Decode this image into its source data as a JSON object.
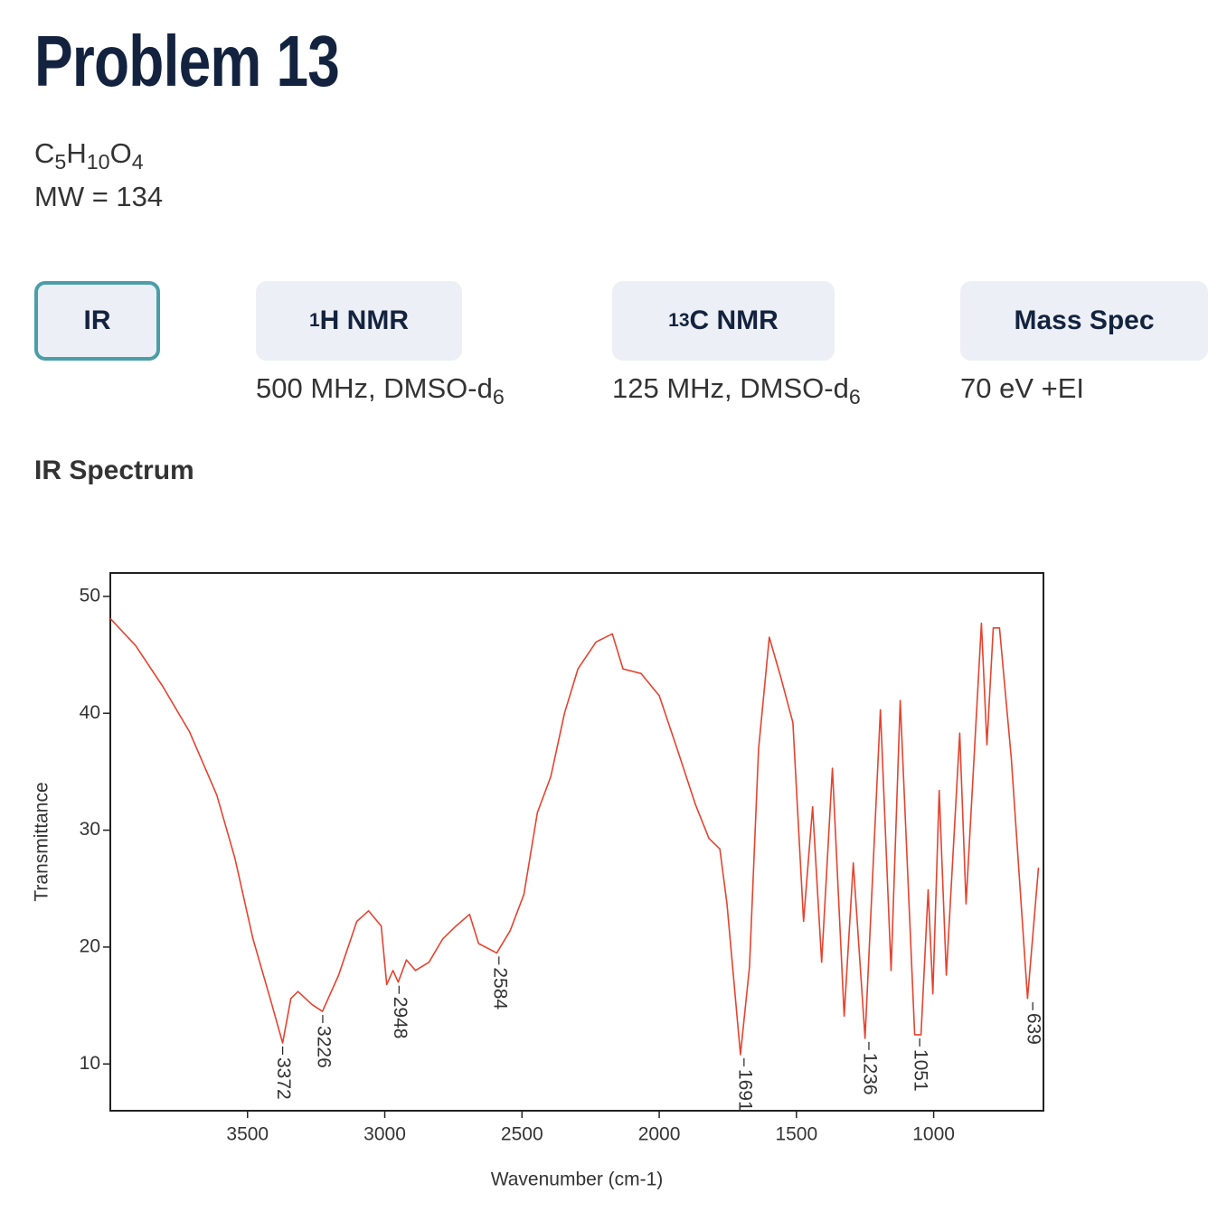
{
  "header": {
    "title": "Problem 13",
    "formula": [
      "C",
      "5",
      "H",
      "10",
      "O",
      "4"
    ],
    "mw": "MW = 134"
  },
  "tabs": {
    "selected": 0,
    "items": [
      {
        "label": "IR"
      },
      {
        "sup": "1",
        "label": "H NMR",
        "note": "500 MHz, DMSO-d",
        "note_sub": "6"
      },
      {
        "sup": "13",
        "label": "C NMR",
        "note": "125 MHz, DMSO-d",
        "note_sub": "6"
      },
      {
        "label": "Mass Spec",
        "note": "70 eV +EI"
      }
    ]
  },
  "section_title": "IR Spectrum",
  "chart_data": {
    "type": "line",
    "xlabel": "Wavenumber (cm-1)",
    "ylabel": "Transmittance",
    "xlim": [
      4000,
      600
    ],
    "ylim": [
      6,
      52
    ],
    "xticks": [
      3500,
      3000,
      2500,
      2000,
      1500,
      1000
    ],
    "yticks": [
      10,
      20,
      30,
      40,
      50
    ],
    "x": [
      4000,
      3908,
      3809,
      3711,
      3612,
      3546,
      3480,
      3414,
      3372,
      3342,
      3316,
      3266,
      3227,
      3168,
      3102,
      3059,
      3013,
      2993,
      2970,
      2951,
      2921,
      2888,
      2839,
      2789,
      2740,
      2691,
      2658,
      2592,
      2543,
      2493,
      2444,
      2395,
      2345,
      2296,
      2230,
      2171,
      2132,
      2066,
      2000,
      1934,
      1868,
      1819,
      1779,
      1753,
      1704,
      1671,
      1638,
      1599,
      1556,
      1513,
      1474,
      1441,
      1408,
      1369,
      1326,
      1293,
      1250,
      1194,
      1155,
      1122,
      1069,
      1046,
      1020,
      1003,
      980,
      954,
      905,
      882,
      826,
      806,
      783,
      760,
      717,
      658,
      618
    ],
    "series": [
      {
        "color": "#e5432f",
        "values": [
          48.1,
          45.8,
          42.3,
          38.4,
          33.0,
          27.6,
          20.7,
          15.3,
          11.8,
          15.6,
          16.2,
          15.1,
          14.5,
          17.6,
          22.2,
          23.1,
          21.8,
          16.8,
          18.0,
          17.0,
          18.9,
          18.0,
          18.7,
          20.7,
          21.8,
          22.8,
          20.3,
          19.5,
          21.4,
          24.5,
          31.5,
          34.6,
          40.0,
          43.8,
          46.1,
          46.8,
          43.8,
          43.4,
          41.5,
          36.9,
          32.2,
          29.3,
          28.4,
          23.7,
          10.8,
          18.3,
          36.9,
          46.5,
          43.0,
          39.2,
          22.2,
          32.0,
          18.7,
          35.3,
          14.1,
          27.2,
          12.2,
          40.3,
          18.0,
          41.1,
          12.5,
          12.5,
          24.9,
          16.0,
          33.4,
          17.6,
          38.3,
          23.7,
          47.7,
          37.3,
          47.3,
          47.3,
          36.1,
          15.6,
          26.8
        ]
      }
    ],
    "peaks": [
      {
        "x": 3372,
        "y": 11.8
      },
      {
        "x": 3226,
        "y": 14.5
      },
      {
        "x": 2948,
        "y": 17.0
      },
      {
        "x": 2584,
        "y": 19.5
      },
      {
        "x": 1691,
        "y": 10.8
      },
      {
        "x": 1236,
        "y": 12.2
      },
      {
        "x": 1051,
        "y": 12.5
      },
      {
        "x": 639,
        "y": 15.6
      }
    ]
  }
}
